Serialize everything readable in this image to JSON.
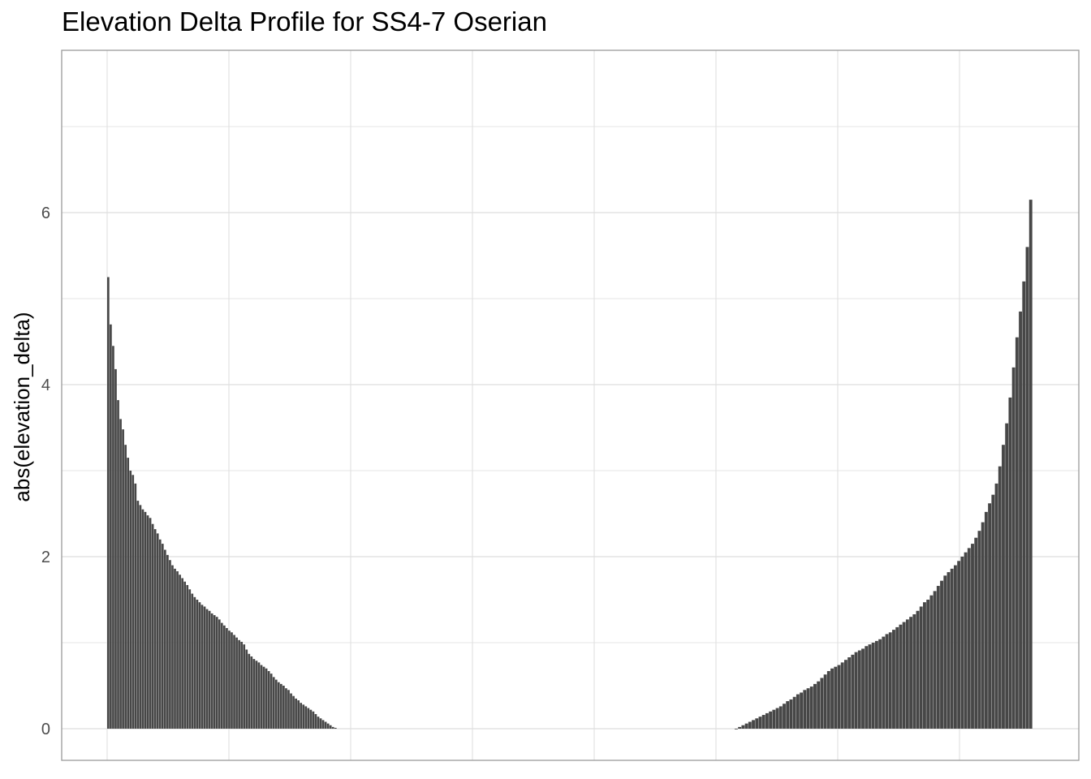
{
  "chart_data": {
    "type": "bar",
    "title": "Elevation Delta Profile for SS4-7 Oserian",
    "xlabel": "",
    "ylabel": "abs(elevation_delta)",
    "ylim": [
      -0.45,
      7.8
    ],
    "yticks": [
      0,
      2,
      4,
      6
    ],
    "grid": true,
    "bar_color": "#474747",
    "grid_color": "#dedede",
    "axis_border_color": "#9a9a9a",
    "segments": [
      {
        "name": "",
        "values": [
          5.25,
          4.7,
          4.45,
          4.18,
          3.82,
          3.6,
          3.48,
          3.3,
          3.15,
          3.0,
          2.95,
          2.85,
          2.65,
          2.6,
          2.55,
          2.52,
          2.48,
          2.45,
          2.38,
          2.32,
          2.27,
          2.2,
          2.15,
          2.08,
          2.02,
          1.96,
          1.9,
          1.86,
          1.83,
          1.79,
          1.75,
          1.71,
          1.67,
          1.62,
          1.57,
          1.53,
          1.5,
          1.47,
          1.44,
          1.42,
          1.39,
          1.37,
          1.34,
          1.32,
          1.3,
          1.27,
          1.23,
          1.2,
          1.17,
          1.14,
          1.12,
          1.09,
          1.06,
          1.03,
          1.01,
          0.98,
          0.92,
          0.87,
          0.84,
          0.81,
          0.79,
          0.77,
          0.74,
          0.72,
          0.7,
          0.67,
          0.64,
          0.6,
          0.57,
          0.54,
          0.52,
          0.5,
          0.47,
          0.45,
          0.41,
          0.38,
          0.35,
          0.33,
          0.3,
          0.28,
          0.26,
          0.24,
          0.22,
          0.2,
          0.17,
          0.14,
          0.12,
          0.1,
          0.08,
          0.06,
          0.04,
          0.02,
          0.01
        ]
      },
      {
        "name": "",
        "values": [
          0.0,
          0.02,
          0.04,
          0.06,
          0.08,
          0.1,
          0.12,
          0.14,
          0.16,
          0.18,
          0.2,
          0.22,
          0.24,
          0.26,
          0.29,
          0.32,
          0.34,
          0.37,
          0.4,
          0.42,
          0.45,
          0.47,
          0.49,
          0.52,
          0.55,
          0.59,
          0.63,
          0.67,
          0.7,
          0.72,
          0.74,
          0.77,
          0.8,
          0.83,
          0.86,
          0.89,
          0.91,
          0.93,
          0.96,
          0.98,
          1.0,
          1.02,
          1.04,
          1.07,
          1.1,
          1.12,
          1.15,
          1.18,
          1.21,
          1.24,
          1.27,
          1.3,
          1.33,
          1.37,
          1.42,
          1.47,
          1.5,
          1.55,
          1.6,
          1.66,
          1.72,
          1.78,
          1.82,
          1.86,
          1.9,
          1.95,
          2.0,
          2.05,
          2.1,
          2.15,
          2.22,
          2.3,
          2.4,
          2.52,
          2.62,
          2.72,
          2.85,
          3.05,
          3.3,
          3.55,
          3.85,
          4.2,
          4.55,
          4.85,
          5.2,
          5.6,
          6.15
        ]
      }
    ]
  }
}
